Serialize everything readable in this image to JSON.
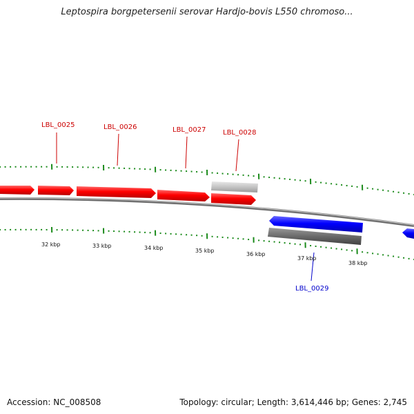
{
  "title": "Leptospira borgpetersenii serovar Hardjo-bovis L550 chromoso...",
  "footer": {
    "accession": "Accession: NC_008508",
    "stats": "Topology: circular; Length: 3,614,446 bp; Genes: 2,745"
  },
  "colors": {
    "forward_gene": "#ff0000",
    "reverse_gene": "#0000ff",
    "gene_label_forward": "#cc0000",
    "gene_label_reverse": "#0000cc",
    "tick": "#1a8a1a",
    "backbone": "#8a8a8a"
  },
  "chart_data": {
    "type": "genome-map",
    "ticks": [
      "32 kbp",
      "33 kbp",
      "34 kbp",
      "35 kbp",
      "36 kbp",
      "37 kbp",
      "38 kbp"
    ],
    "genes": [
      {
        "label": "LBL_0025",
        "strand": "+"
      },
      {
        "label": "LBL_0026",
        "strand": "+"
      },
      {
        "label": "LBL_0027",
        "strand": "+"
      },
      {
        "label": "LBL_0028",
        "strand": "+"
      },
      {
        "label": "LBL_0029",
        "strand": "-"
      }
    ]
  }
}
